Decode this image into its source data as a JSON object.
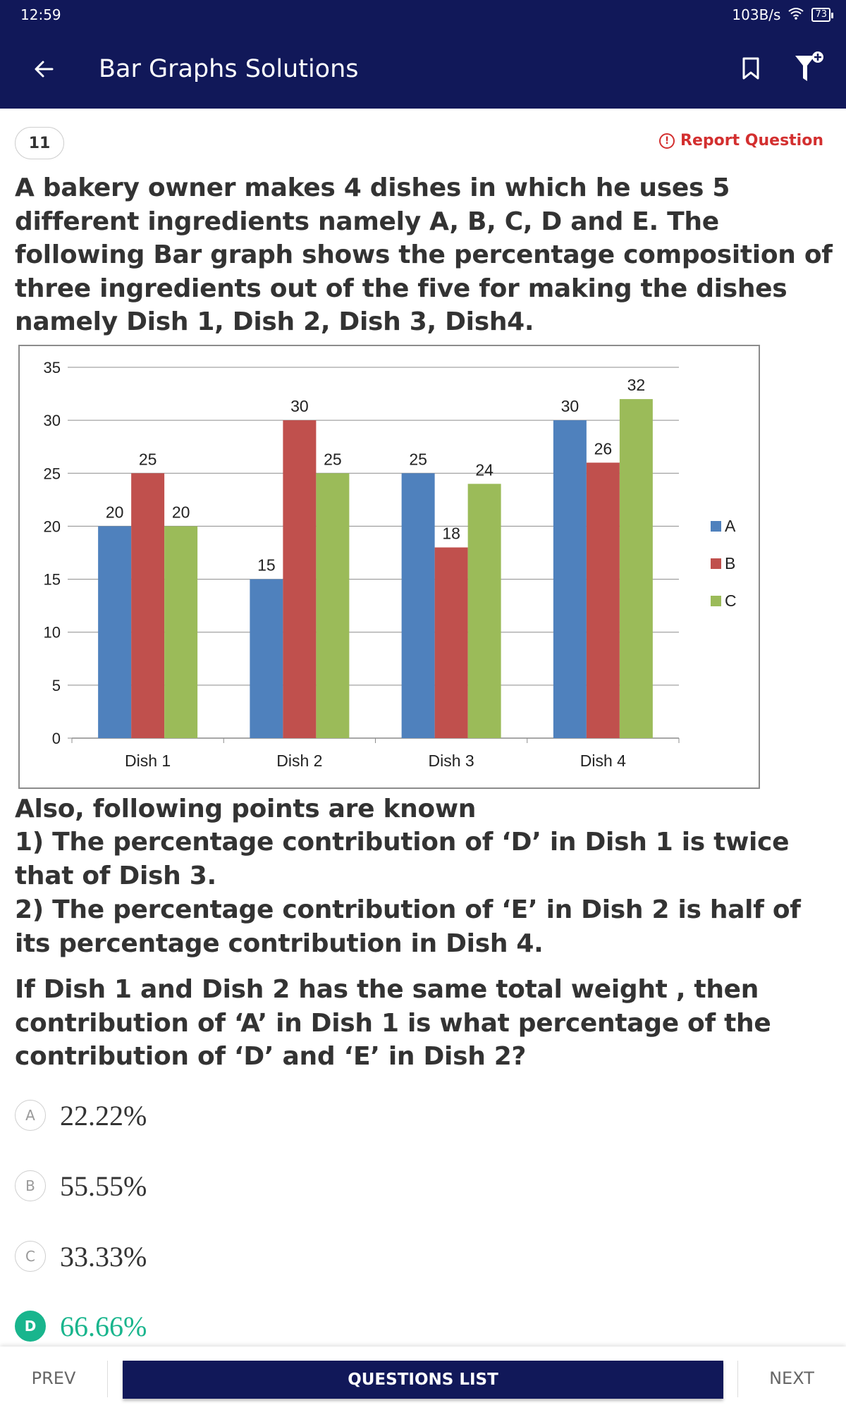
{
  "status": {
    "time": "12:59",
    "network": "103B/s",
    "battery": "73"
  },
  "app_bar": {
    "title": "Bar Graphs Solutions"
  },
  "question": {
    "number": "11",
    "report_label": "Report Question",
    "text": "A bakery owner makes 4 dishes in which he uses 5 different ingredients namely A, B, C, D and E. The following Bar graph shows the percentage composition of three ingredients out of the five for making the dishes namely Dish 1, Dish 2, Dish 3, Dish4.",
    "points_intro": "Also, following points are known",
    "point_1": "1) The percentage contribution of ‘D’ in Dish 1 is twice that of Dish 3.",
    "point_2": "2) The percentage contribution of ‘E’ in Dish 2 is half of its percentage contribution in Dish 4.",
    "prompt": "If Dish 1 and Dish 2 has the same total weight , then contribution of ‘A’ in Dish 1 is what percentage of the contribution of ‘D’ and ‘E’ in Dish 2?"
  },
  "chart_data": {
    "type": "bar",
    "categories": [
      "Dish 1",
      "Dish 2",
      "Dish 3",
      "Dish 4"
    ],
    "series": [
      {
        "name": "A",
        "color": "#4f81bd",
        "values": [
          20,
          15,
          25,
          30
        ]
      },
      {
        "name": "B",
        "color": "#c0504d",
        "values": [
          25,
          30,
          18,
          26
        ]
      },
      {
        "name": "C",
        "color": "#9bbb59",
        "values": [
          20,
          25,
          24,
          32
        ]
      }
    ],
    "y_ticks": [
      0,
      5,
      10,
      15,
      20,
      25,
      30,
      35
    ],
    "ylim": [
      0,
      35
    ],
    "grid": true,
    "data_labels": true,
    "legend_position": "right"
  },
  "options": [
    {
      "letter": "A",
      "text": "22.22%",
      "correct": false
    },
    {
      "letter": "B",
      "text": "55.55%",
      "correct": false
    },
    {
      "letter": "C",
      "text": "33.33%",
      "correct": false
    },
    {
      "letter": "D",
      "text": "66.66%",
      "correct": true
    }
  ],
  "nav": {
    "prev": "PREV",
    "questions_list": "QUESTIONS LIST",
    "next": "NEXT"
  }
}
